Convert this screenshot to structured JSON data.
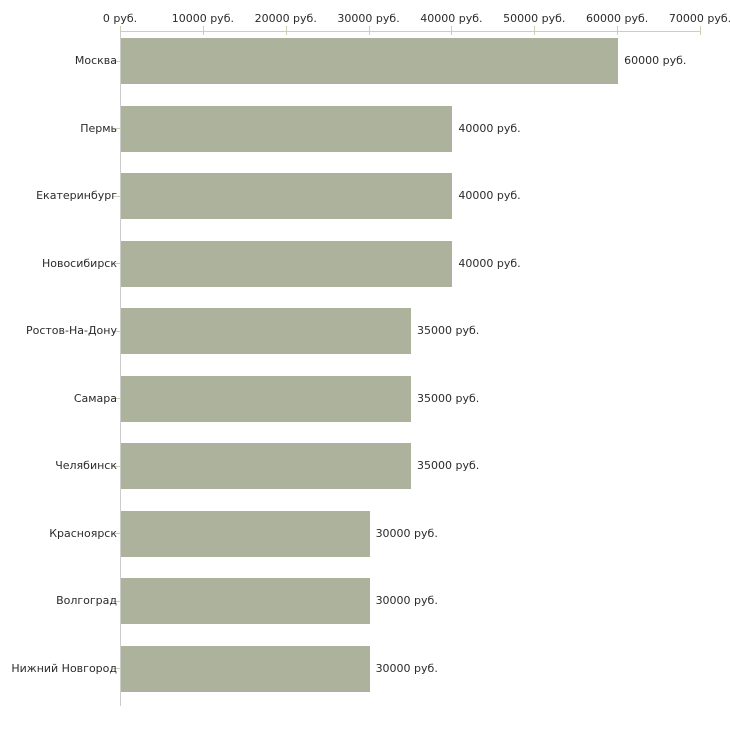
{
  "chart_data": {
    "type": "bar",
    "orientation": "horizontal",
    "title": "",
    "xlabel": "",
    "ylabel": "",
    "grid": false,
    "legend": false,
    "categories": [
      "Москва",
      "Пермь",
      "Екатеринбург",
      "Новосибирск",
      "Ростов-На-Дону",
      "Самара",
      "Челябинск",
      "Красноярск",
      "Волгоград",
      "Нижний Новгород"
    ],
    "values": [
      60000,
      40000,
      40000,
      40000,
      35000,
      35000,
      35000,
      30000,
      30000,
      30000
    ],
    "value_labels": [
      "60000 руб.",
      "40000 руб.",
      "40000 руб.",
      "40000 руб.",
      "35000 руб.",
      "35000 руб.",
      "35000 руб.",
      "30000 руб.",
      "30000 руб.",
      "30000 руб."
    ],
    "x_axis": {
      "min": 0,
      "max": 70000,
      "ticks": [
        0,
        10000,
        20000,
        30000,
        40000,
        50000,
        60000,
        70000
      ],
      "tick_labels": [
        "0 руб.",
        "10000 руб.",
        "20000 руб.",
        "30000 руб.",
        "40000 руб.",
        "50000 руб.",
        "60000 руб.",
        "70000 руб."
      ],
      "position": "top"
    },
    "colors": {
      "bar": "#acb29b",
      "axis": "#cccccc",
      "tick": "#cbcfb4",
      "text": "#2b2b2b",
      "background": "#ffffff"
    }
  }
}
